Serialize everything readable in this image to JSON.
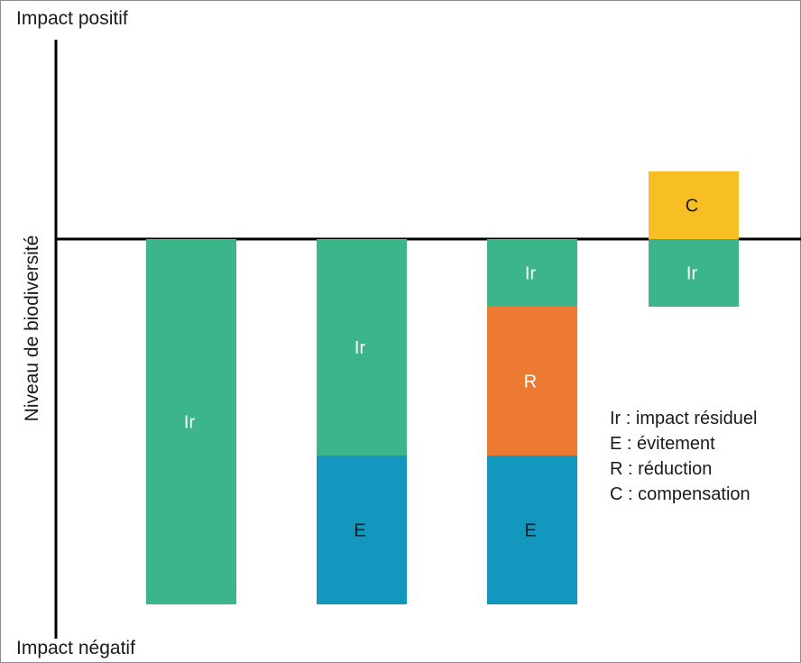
{
  "chart_data": {
    "type": "bar",
    "stacked": true,
    "baseline": 0,
    "ylim": [
      -4.1,
      2.0
    ],
    "y_top_label": "Impact positif",
    "y_bottom_label": "Impact négatif",
    "ylabel": "Niveau de biodiversité",
    "columns": [
      {
        "segments": [
          {
            "key": "Ir",
            "label": "Ir",
            "from": 0,
            "to": -4.05
          }
        ]
      },
      {
        "segments": [
          {
            "key": "Ir",
            "label": "Ir",
            "from": 0,
            "to": -2.4
          },
          {
            "key": "E",
            "label": "E",
            "from": -2.4,
            "to": -4.05
          }
        ]
      },
      {
        "segments": [
          {
            "key": "Ir",
            "label": "Ir",
            "from": 0,
            "to": -0.75
          },
          {
            "key": "R",
            "label": "R",
            "from": -0.75,
            "to": -2.4
          },
          {
            "key": "E",
            "label": "E",
            "from": -2.4,
            "to": -4.05
          }
        ]
      },
      {
        "segments": [
          {
            "key": "C",
            "label": "C",
            "from": 0,
            "to": 0.75
          },
          {
            "key": "Ir",
            "label": "Ir",
            "from": 0,
            "to": -0.75
          }
        ]
      }
    ],
    "colors": {
      "Ir": "#3cb58a",
      "E": "#1497bf",
      "R": "#ec7a32",
      "C": "#f8bf24"
    },
    "legend": [
      "Ir : impact résiduel",
      "E : évitement",
      "R : réduction",
      "C : compensation"
    ]
  }
}
